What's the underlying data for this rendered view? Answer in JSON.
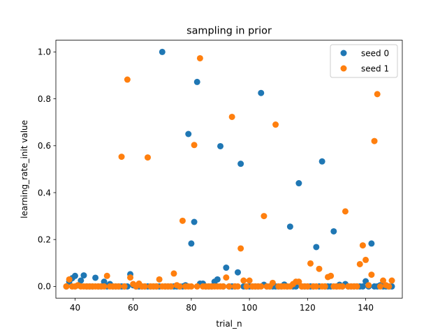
{
  "chart_data": {
    "type": "scatter",
    "title": "sampling in prior",
    "xlabel": "trial_n",
    "ylabel": "learning_rate_init value",
    "xlim": [
      33.4,
      152.6
    ],
    "ylim": [
      -0.05,
      1.05
    ],
    "xticks": [
      40,
      60,
      80,
      100,
      120,
      140
    ],
    "yticks": [
      0.0,
      0.2,
      0.4,
      0.6,
      0.8,
      1.0
    ],
    "xtick_labels": [
      "40",
      "60",
      "80",
      "100",
      "120",
      "140"
    ],
    "ytick_labels": [
      "0.0",
      "0.2",
      "0.4",
      "0.6",
      "0.8",
      "1.0"
    ],
    "legend_position": "top-right",
    "grid": false,
    "series": [
      {
        "name": "seed 0",
        "color": "#1f77b4",
        "points": [
          [
            37,
            0.0
          ],
          [
            38,
            0.02
          ],
          [
            39,
            0.035
          ],
          [
            40,
            0.045
          ],
          [
            41,
            0.005
          ],
          [
            42,
            0.025
          ],
          [
            43,
            0.047
          ],
          [
            44,
            0.0
          ],
          [
            45,
            0.0
          ],
          [
            46,
            0.0
          ],
          [
            47,
            0.037
          ],
          [
            48,
            0.0
          ],
          [
            49,
            0.0
          ],
          [
            50,
            0.02
          ],
          [
            51,
            0.0
          ],
          [
            52,
            0.01
          ],
          [
            53,
            0.0
          ],
          [
            54,
            0.0
          ],
          [
            55,
            0.0
          ],
          [
            56,
            0.0
          ],
          [
            57,
            0.0
          ],
          [
            58,
            0.0
          ],
          [
            59,
            0.052
          ],
          [
            60,
            0.005
          ],
          [
            61,
            0.0
          ],
          [
            62,
            0.0
          ],
          [
            63,
            0.0
          ],
          [
            64,
            0.0
          ],
          [
            65,
            0.0
          ],
          [
            66,
            0.0
          ],
          [
            67,
            0.0
          ],
          [
            68,
            0.0
          ],
          [
            69,
            0.0
          ],
          [
            70,
            1.0
          ],
          [
            71,
            0.0
          ],
          [
            72,
            0.0
          ],
          [
            73,
            0.0
          ],
          [
            74,
            0.0
          ],
          [
            75,
            0.0
          ],
          [
            76,
            0.0
          ],
          [
            77,
            0.0
          ],
          [
            78,
            0.005
          ],
          [
            79,
            0.65
          ],
          [
            80,
            0.183
          ],
          [
            81,
            0.275
          ],
          [
            82,
            0.872
          ],
          [
            83,
            0.012
          ],
          [
            84,
            0.012
          ],
          [
            85,
            0.0
          ],
          [
            86,
            0.0
          ],
          [
            87,
            0.0
          ],
          [
            88,
            0.02
          ],
          [
            89,
            0.03
          ],
          [
            90,
            0.598
          ],
          [
            91,
            0.0
          ],
          [
            92,
            0.08
          ],
          [
            93,
            0.0
          ],
          [
            94,
            0.0
          ],
          [
            95,
            0.0
          ],
          [
            96,
            0.06
          ],
          [
            97,
            0.523
          ],
          [
            98,
            0.0
          ],
          [
            99,
            0.0
          ],
          [
            100,
            0.0
          ],
          [
            101,
            0.0
          ],
          [
            102,
            0.0
          ],
          [
            103,
            0.0
          ],
          [
            104,
            0.825
          ],
          [
            105,
            0.007
          ],
          [
            106,
            0.0
          ],
          [
            107,
            0.0
          ],
          [
            108,
            0.0
          ],
          [
            109,
            0.0
          ],
          [
            110,
            0.0
          ],
          [
            111,
            0.0
          ],
          [
            112,
            0.008
          ],
          [
            113,
            0.0
          ],
          [
            114,
            0.255
          ],
          [
            115,
            0.0
          ],
          [
            116,
            0.0
          ],
          [
            117,
            0.44
          ],
          [
            118,
            0.0
          ],
          [
            119,
            0.0
          ],
          [
            120,
            0.0
          ],
          [
            121,
            0.0
          ],
          [
            122,
            0.0
          ],
          [
            123,
            0.168
          ],
          [
            124,
            0.0
          ],
          [
            125,
            0.533
          ],
          [
            126,
            0.0
          ],
          [
            127,
            0.0
          ],
          [
            128,
            0.0
          ],
          [
            129,
            0.235
          ],
          [
            130,
            0.0
          ],
          [
            131,
            0.007
          ],
          [
            132,
            0.0
          ],
          [
            133,
            0.01
          ],
          [
            134,
            0.0
          ],
          [
            135,
            0.0
          ],
          [
            136,
            0.0
          ],
          [
            137,
            0.0
          ],
          [
            138,
            0.0
          ],
          [
            139,
            0.0
          ],
          [
            140,
            0.022
          ],
          [
            141,
            0.0
          ],
          [
            142,
            0.183
          ],
          [
            143,
            0.0
          ],
          [
            144,
            0.0
          ],
          [
            145,
            0.005
          ],
          [
            146,
            0.0
          ],
          [
            147,
            0.0
          ],
          [
            148,
            0.0
          ],
          [
            149,
            0.0
          ]
        ]
      },
      {
        "name": "seed 1",
        "color": "#ff7f0e",
        "points": [
          [
            37,
            0.0
          ],
          [
            38,
            0.03
          ],
          [
            39,
            0.0
          ],
          [
            40,
            0.0
          ],
          [
            41,
            0.005
          ],
          [
            42,
            0.0
          ],
          [
            43,
            0.0
          ],
          [
            44,
            0.0
          ],
          [
            45,
            0.0
          ],
          [
            46,
            0.0
          ],
          [
            47,
            0.0
          ],
          [
            48,
            0.0
          ],
          [
            49,
            0.0
          ],
          [
            50,
            0.0
          ],
          [
            51,
            0.045
          ],
          [
            52,
            0.0
          ],
          [
            53,
            0.0
          ],
          [
            54,
            0.0
          ],
          [
            55,
            0.0
          ],
          [
            56,
            0.553
          ],
          [
            57,
            0.0
          ],
          [
            58,
            0.882
          ],
          [
            59,
            0.038
          ],
          [
            60,
            0.01
          ],
          [
            61,
            0.0
          ],
          [
            62,
            0.012
          ],
          [
            63,
            0.0
          ],
          [
            64,
            0.0
          ],
          [
            65,
            0.55
          ],
          [
            66,
            0.0
          ],
          [
            67,
            0.0
          ],
          [
            68,
            0.0
          ],
          [
            69,
            0.03
          ],
          [
            70,
            0.0
          ],
          [
            71,
            0.0
          ],
          [
            72,
            0.0
          ],
          [
            73,
            0.0
          ],
          [
            74,
            0.055
          ],
          [
            75,
            0.005
          ],
          [
            76,
            0.0
          ],
          [
            77,
            0.28
          ],
          [
            78,
            0.0
          ],
          [
            79,
            0.0
          ],
          [
            80,
            0.0
          ],
          [
            81,
            0.603
          ],
          [
            82,
            0.0
          ],
          [
            83,
            0.973
          ],
          [
            84,
            0.0
          ],
          [
            85,
            0.0
          ],
          [
            86,
            0.0
          ],
          [
            87,
            0.0
          ],
          [
            88,
            0.0
          ],
          [
            89,
            0.0
          ],
          [
            90,
            0.0
          ],
          [
            91,
            0.0
          ],
          [
            92,
            0.038
          ],
          [
            93,
            0.0
          ],
          [
            94,
            0.723
          ],
          [
            95,
            0.0
          ],
          [
            96,
            0.0
          ],
          [
            97,
            0.162
          ],
          [
            98,
            0.025
          ],
          [
            99,
            0.0
          ],
          [
            100,
            0.025
          ],
          [
            101,
            0.0
          ],
          [
            102,
            0.0
          ],
          [
            103,
            0.0
          ],
          [
            104,
            0.0
          ],
          [
            105,
            0.3
          ],
          [
            106,
            0.0
          ],
          [
            107,
            0.0
          ],
          [
            108,
            0.015
          ],
          [
            109,
            0.69
          ],
          [
            110,
            0.0
          ],
          [
            111,
            0.0
          ],
          [
            112,
            0.0
          ],
          [
            113,
            0.0
          ],
          [
            114,
            0.0
          ],
          [
            115,
            0.01
          ],
          [
            116,
            0.02
          ],
          [
            117,
            0.02
          ],
          [
            118,
            0.0
          ],
          [
            119,
            0.0
          ],
          [
            120,
            0.0
          ],
          [
            121,
            0.098
          ],
          [
            122,
            0.0
          ],
          [
            123,
            0.0
          ],
          [
            124,
            0.075
          ],
          [
            125,
            0.0
          ],
          [
            126,
            0.0
          ],
          [
            127,
            0.04
          ],
          [
            128,
            0.045
          ],
          [
            129,
            0.0
          ],
          [
            130,
            0.0
          ],
          [
            131,
            0.0
          ],
          [
            132,
            0.0
          ],
          [
            133,
            0.32
          ],
          [
            134,
            0.0
          ],
          [
            135,
            0.0
          ],
          [
            136,
            0.0
          ],
          [
            137,
            0.0
          ],
          [
            138,
            0.095
          ],
          [
            139,
            0.175
          ],
          [
            140,
            0.113
          ],
          [
            141,
            0.005
          ],
          [
            142,
            0.05
          ],
          [
            143,
            0.62
          ],
          [
            144,
            0.82
          ],
          [
            145,
            0.0
          ],
          [
            146,
            0.025
          ],
          [
            147,
            0.005
          ],
          [
            148,
            0.0
          ],
          [
            149,
            0.025
          ]
        ]
      }
    ]
  }
}
